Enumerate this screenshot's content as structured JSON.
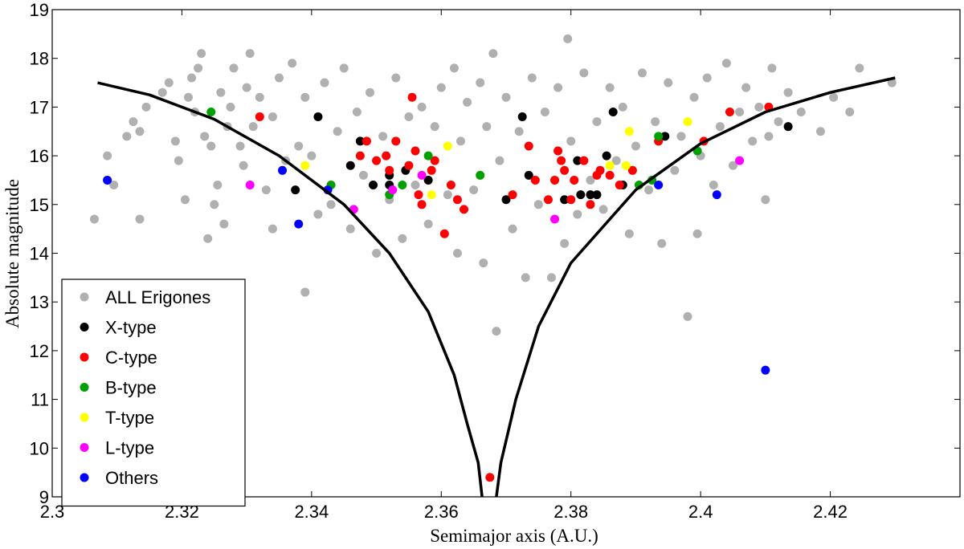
{
  "chart_data": {
    "type": "scatter",
    "title": "",
    "xlabel": "Semimajor axis (A.U.)",
    "ylabel": "Absolute magnitude",
    "xlim": [
      2.3,
      2.44
    ],
    "ylim": [
      9,
      19
    ],
    "xticks": [
      2.3,
      2.32,
      2.34,
      2.36,
      2.38,
      2.4,
      2.42
    ],
    "xtick_labels": [
      "2.3",
      "2.32",
      "2.34",
      "2.36",
      "2.38",
      "2.4",
      "2.42"
    ],
    "yticks": [
      9,
      10,
      11,
      12,
      13,
      14,
      15,
      16,
      17,
      18,
      19
    ],
    "ytick_labels": [
      "9",
      "10",
      "11",
      "12",
      "13",
      "14",
      "15",
      "16",
      "17",
      "18",
      "19"
    ],
    "grid": false,
    "legend_position": "bottom-left",
    "boundary_curves": {
      "name": "V-shape envelope",
      "color": "#000000",
      "center": 2.367,
      "left": [
        [
          2.307,
          17.5
        ],
        [
          2.315,
          17.25
        ],
        [
          2.325,
          16.75
        ],
        [
          2.335,
          16.0
        ],
        [
          2.345,
          15.0
        ],
        [
          2.352,
          14.0
        ],
        [
          2.358,
          12.8
        ],
        [
          2.362,
          11.5
        ],
        [
          2.364,
          10.5
        ],
        [
          2.3657,
          9.7
        ],
        [
          2.3663,
          9.0
        ]
      ],
      "right": [
        [
          2.3685,
          9.0
        ],
        [
          2.3692,
          9.7
        ],
        [
          2.3715,
          11.0
        ],
        [
          2.375,
          12.5
        ],
        [
          2.38,
          13.8
        ],
        [
          2.39,
          15.3
        ],
        [
          2.4,
          16.25
        ],
        [
          2.41,
          16.9
        ],
        [
          2.42,
          17.3
        ],
        [
          2.43,
          17.6
        ]
      ]
    },
    "series": [
      {
        "name": "ALL Erigones",
        "color": "#b0b0b0",
        "points": [
          [
            2.3065,
            14.7
          ],
          [
            2.3085,
            16.0
          ],
          [
            2.3095,
            15.4
          ],
          [
            2.3115,
            16.4
          ],
          [
            2.3125,
            16.7
          ],
          [
            2.3135,
            14.7
          ],
          [
            2.3135,
            16.5
          ],
          [
            2.3145,
            17.0
          ],
          [
            2.317,
            17.3
          ],
          [
            2.318,
            17.5
          ],
          [
            2.319,
            16.3
          ],
          [
            2.3195,
            15.9
          ],
          [
            2.3205,
            15.1
          ],
          [
            2.321,
            17.2
          ],
          [
            2.3215,
            17.6
          ],
          [
            2.322,
            16.9
          ],
          [
            2.3225,
            17.8
          ],
          [
            2.323,
            18.1
          ],
          [
            2.3235,
            16.4
          ],
          [
            2.324,
            14.3
          ],
          [
            2.3245,
            16.2
          ],
          [
            2.325,
            15.0
          ],
          [
            2.3255,
            15.4
          ],
          [
            2.326,
            17.3
          ],
          [
            2.3265,
            14.6
          ],
          [
            2.327,
            16.6
          ],
          [
            2.3275,
            17.0
          ],
          [
            2.328,
            17.8
          ],
          [
            2.329,
            16.2
          ],
          [
            2.3295,
            15.8
          ],
          [
            2.33,
            17.4
          ],
          [
            2.3305,
            18.1
          ],
          [
            2.331,
            16.6
          ],
          [
            2.332,
            17.2
          ],
          [
            2.333,
            15.3
          ],
          [
            2.334,
            14.5
          ],
          [
            2.334,
            16.8
          ],
          [
            2.335,
            17.6
          ],
          [
            2.336,
            15.9
          ],
          [
            2.337,
            17.9
          ],
          [
            2.338,
            16.2
          ],
          [
            2.339,
            13.2
          ],
          [
            2.339,
            17.2
          ],
          [
            2.34,
            16.0
          ],
          [
            2.341,
            14.8
          ],
          [
            2.342,
            17.5
          ],
          [
            2.343,
            15.0
          ],
          [
            2.344,
            16.5
          ],
          [
            2.345,
            17.8
          ],
          [
            2.346,
            14.5
          ],
          [
            2.347,
            16.9
          ],
          [
            2.348,
            15.6
          ],
          [
            2.349,
            17.3
          ],
          [
            2.35,
            14.0
          ],
          [
            2.351,
            16.4
          ],
          [
            2.352,
            15.1
          ],
          [
            2.353,
            17.6
          ],
          [
            2.354,
            14.3
          ],
          [
            2.355,
            16.8
          ],
          [
            2.356,
            15.4
          ],
          [
            2.357,
            17.0
          ],
          [
            2.358,
            14.6
          ],
          [
            2.359,
            16.6
          ],
          [
            2.36,
            17.4
          ],
          [
            2.361,
            15.2
          ],
          [
            2.362,
            17.8
          ],
          [
            2.3625,
            14.0
          ],
          [
            2.363,
            16.3
          ],
          [
            2.364,
            17.1
          ],
          [
            2.365,
            15.3
          ],
          [
            2.366,
            17.5
          ],
          [
            2.3665,
            13.8
          ],
          [
            2.367,
            16.6
          ],
          [
            2.368,
            18.1
          ],
          [
            2.3685,
            12.4
          ],
          [
            2.369,
            15.9
          ],
          [
            2.37,
            17.2
          ],
          [
            2.371,
            14.5
          ],
          [
            2.372,
            16.5
          ],
          [
            2.373,
            13.5
          ],
          [
            2.374,
            17.6
          ],
          [
            2.375,
            15.0
          ],
          [
            2.376,
            16.9
          ],
          [
            2.377,
            13.5
          ],
          [
            2.378,
            17.4
          ],
          [
            2.379,
            14.2
          ],
          [
            2.3795,
            18.4
          ],
          [
            2.38,
            16.3
          ],
          [
            2.381,
            14.8
          ],
          [
            2.382,
            17.7
          ],
          [
            2.383,
            15.5
          ],
          [
            2.384,
            16.7
          ],
          [
            2.385,
            14.9
          ],
          [
            2.386,
            17.4
          ],
          [
            2.387,
            15.9
          ],
          [
            2.388,
            17.0
          ],
          [
            2.389,
            14.4
          ],
          [
            2.39,
            16.2
          ],
          [
            2.391,
            17.7
          ],
          [
            2.392,
            15.3
          ],
          [
            2.393,
            16.7
          ],
          [
            2.394,
            14.2
          ],
          [
            2.395,
            17.5
          ],
          [
            2.396,
            15.7
          ],
          [
            2.397,
            16.4
          ],
          [
            2.398,
            12.7
          ],
          [
            2.399,
            17.2
          ],
          [
            2.3995,
            14.4
          ],
          [
            2.4,
            16.0
          ],
          [
            2.401,
            17.6
          ],
          [
            2.402,
            15.4
          ],
          [
            2.403,
            16.6
          ],
          [
            2.404,
            17.9
          ],
          [
            2.405,
            15.8
          ],
          [
            2.406,
            16.9
          ],
          [
            2.407,
            17.4
          ],
          [
            2.408,
            16.3
          ],
          [
            2.409,
            17.0
          ],
          [
            2.41,
            15.1
          ],
          [
            2.4105,
            16.4
          ],
          [
            2.411,
            17.8
          ],
          [
            2.412,
            16.7
          ],
          [
            2.4135,
            17.3
          ],
          [
            2.4155,
            16.9
          ],
          [
            2.4185,
            16.5
          ],
          [
            2.4205,
            17.2
          ],
          [
            2.423,
            16.9
          ],
          [
            2.4245,
            17.8
          ],
          [
            2.4295,
            17.5
          ]
        ]
      },
      {
        "name": "X-type",
        "color": "#000000",
        "points": [
          [
            2.341,
            16.8
          ],
          [
            2.346,
            15.8
          ],
          [
            2.3475,
            16.3
          ],
          [
            2.3495,
            15.4
          ],
          [
            2.352,
            15.6
          ],
          [
            2.352,
            15.4
          ],
          [
            2.3545,
            15.7
          ],
          [
            2.358,
            15.5
          ],
          [
            2.3375,
            15.3
          ],
          [
            2.3725,
            16.8
          ],
          [
            2.3735,
            15.6
          ],
          [
            2.37,
            15.1
          ],
          [
            2.379,
            15.1
          ],
          [
            2.381,
            15.9
          ],
          [
            2.3815,
            15.2
          ],
          [
            2.383,
            15.2
          ],
          [
            2.384,
            15.2
          ],
          [
            2.3855,
            16.0
          ],
          [
            2.3865,
            16.9
          ],
          [
            2.388,
            15.4
          ],
          [
            2.3945,
            16.4
          ],
          [
            2.4135,
            16.6
          ]
        ]
      },
      {
        "name": "C-type",
        "color": "#ff0000",
        "points": [
          [
            2.332,
            16.8
          ],
          [
            2.3475,
            16.0
          ],
          [
            2.3485,
            16.3
          ],
          [
            2.35,
            15.9
          ],
          [
            2.3515,
            16.0
          ],
          [
            2.352,
            15.7
          ],
          [
            2.353,
            16.3
          ],
          [
            2.355,
            15.8
          ],
          [
            2.3555,
            17.2
          ],
          [
            2.356,
            16.1
          ],
          [
            2.3565,
            15.2
          ],
          [
            2.357,
            15.0
          ],
          [
            2.3585,
            15.7
          ],
          [
            2.359,
            15.9
          ],
          [
            2.3605,
            14.4
          ],
          [
            2.3615,
            15.4
          ],
          [
            2.3625,
            15.1
          ],
          [
            2.3635,
            14.9
          ],
          [
            2.3675,
            9.4
          ],
          [
            2.371,
            15.2
          ],
          [
            2.3735,
            16.2
          ],
          [
            2.3745,
            15.5
          ],
          [
            2.3765,
            15.1
          ],
          [
            2.3775,
            15.5
          ],
          [
            2.378,
            16.1
          ],
          [
            2.3785,
            15.9
          ],
          [
            2.379,
            15.7
          ],
          [
            2.38,
            15.1
          ],
          [
            2.3805,
            15.5
          ],
          [
            2.382,
            15.9
          ],
          [
            2.383,
            15.0
          ],
          [
            2.384,
            15.6
          ],
          [
            2.3845,
            15.7
          ],
          [
            2.386,
            15.6
          ],
          [
            2.3875,
            15.4
          ],
          [
            2.3895,
            15.7
          ],
          [
            2.3935,
            16.3
          ],
          [
            2.4005,
            16.3
          ],
          [
            2.4045,
            16.9
          ],
          [
            2.4105,
            17.0
          ]
        ]
      },
      {
        "name": "B-type",
        "color": "#00a000",
        "points": [
          [
            2.3245,
            16.9
          ],
          [
            2.343,
            15.4
          ],
          [
            2.352,
            15.2
          ],
          [
            2.354,
            15.4
          ],
          [
            2.358,
            16.0
          ],
          [
            2.366,
            15.6
          ],
          [
            2.3905,
            15.4
          ],
          [
            2.3925,
            15.5
          ],
          [
            2.3935,
            16.4
          ],
          [
            2.3995,
            16.1
          ]
        ]
      },
      {
        "name": "T-type",
        "color": "#ffff00",
        "points": [
          [
            2.339,
            15.8
          ],
          [
            2.3585,
            15.2
          ],
          [
            2.361,
            16.2
          ],
          [
            2.3885,
            15.8
          ],
          [
            2.386,
            15.8
          ],
          [
            2.389,
            16.5
          ],
          [
            2.398,
            16.7
          ]
        ]
      },
      {
        "name": "L-type",
        "color": "#ff00ff",
        "points": [
          [
            2.3305,
            15.4
          ],
          [
            2.3465,
            14.9
          ],
          [
            2.3525,
            15.3
          ],
          [
            2.357,
            15.6
          ],
          [
            2.3775,
            14.7
          ],
          [
            2.406,
            15.9
          ]
        ]
      },
      {
        "name": "Others",
        "color": "#0000ff",
        "points": [
          [
            2.3085,
            15.5
          ],
          [
            2.3355,
            15.7
          ],
          [
            2.338,
            14.6
          ],
          [
            2.3425,
            15.3
          ],
          [
            2.3935,
            15.4
          ],
          [
            2.4025,
            15.2
          ],
          [
            2.41,
            11.6
          ]
        ]
      }
    ]
  }
}
